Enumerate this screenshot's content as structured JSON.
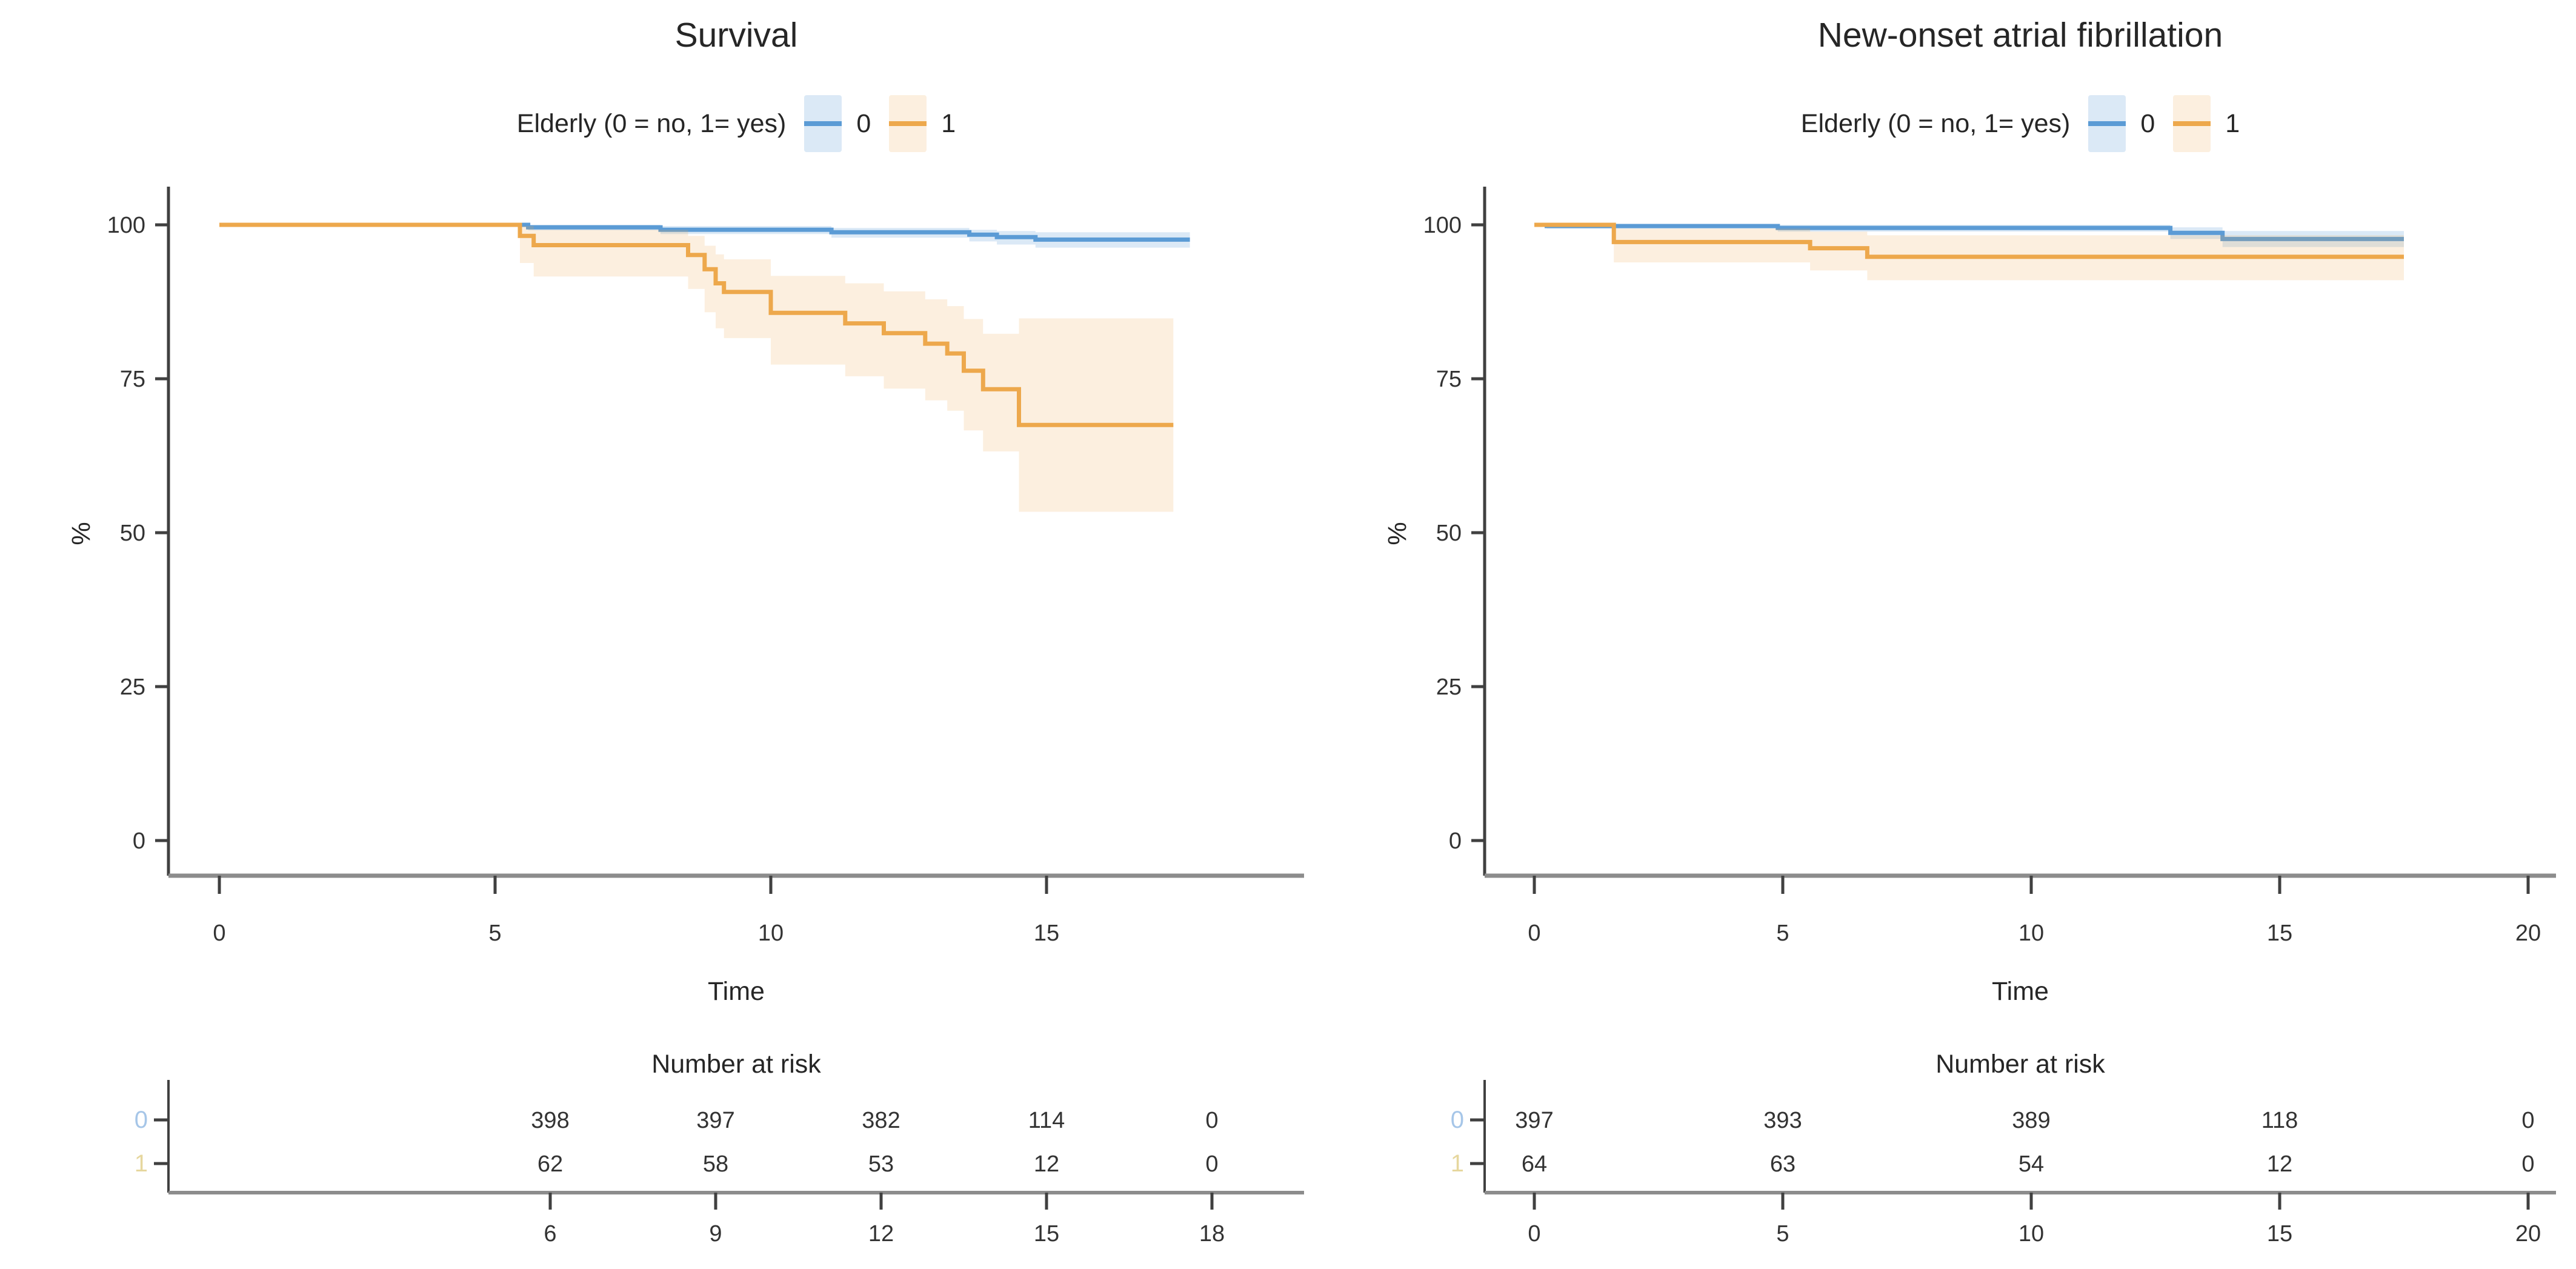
{
  "figure": {
    "background": "#FFFFFF",
    "text_color": "#262626"
  },
  "chart_data": [
    {
      "type": "line",
      "variant": "kaplan-meier-step",
      "title": "Survival",
      "legend_title": "Elderly (0 = no, 1= yes)",
      "legend_position": "top",
      "xlabel": "Time",
      "ylabel": "%",
      "grid": false,
      "ylim": [
        0,
        105
      ],
      "xlim": [
        0,
        19.7
      ],
      "yticks": [
        100,
        75,
        50,
        25,
        0
      ],
      "xticks": [
        0,
        5,
        10,
        15
      ],
      "series": [
        {
          "name": "0",
          "color": "#5B9BD5",
          "band_color": "rgba(91,155,213,0.22)",
          "points": [
            [
              0,
              100
            ],
            [
              5.6,
              99.6
            ],
            [
              8.0,
              99.2
            ],
            [
              11.1,
              98.8
            ],
            [
              13.6,
              98.4
            ],
            [
              14.1,
              98.0
            ],
            [
              14.8,
              97.6
            ],
            [
              17.6,
              97.6
            ]
          ],
          "ci": [
            [
              0,
              100,
              100
            ],
            [
              5.6,
              99.1,
              100
            ],
            [
              8.0,
              98.5,
              99.8
            ],
            [
              11.1,
              97.9,
              99.5
            ],
            [
              13.6,
              97.3,
              99.2
            ],
            [
              14.1,
              96.8,
              99.0
            ],
            [
              14.8,
              96.3,
              98.8
            ],
            [
              17.6,
              96.3,
              98.8
            ]
          ]
        },
        {
          "name": "1",
          "color": "#EDA84C",
          "band_color": "rgba(237,168,76,0.18)",
          "points": [
            [
              0,
              100
            ],
            [
              5.45,
              98.2
            ],
            [
              5.7,
              96.7
            ],
            [
              8.5,
              95.1
            ],
            [
              8.8,
              92.8
            ],
            [
              9.0,
              90.5
            ],
            [
              9.15,
              89.1
            ],
            [
              10.0,
              85.7
            ],
            [
              11.35,
              84.0
            ],
            [
              12.05,
              82.4
            ],
            [
              12.8,
              80.7
            ],
            [
              13.2,
              79.1
            ],
            [
              13.5,
              76.3
            ],
            [
              13.85,
              73.3
            ],
            [
              14.5,
              67.5
            ],
            [
              17.3,
              67.5
            ]
          ],
          "ci": [
            [
              0,
              100,
              100
            ],
            [
              5.45,
              93.8,
              99.8
            ],
            [
              5.7,
              91.6,
              99.2
            ],
            [
              8.5,
              89.6,
              98.2
            ],
            [
              8.8,
              85.8,
              96.6
            ],
            [
              9.0,
              83.2,
              95.2
            ],
            [
              9.15,
              81.6,
              94.4
            ],
            [
              10.0,
              77.3,
              91.7
            ],
            [
              11.35,
              75.4,
              90.5
            ],
            [
              12.05,
              73.4,
              89.2
            ],
            [
              12.8,
              71.5,
              87.9
            ],
            [
              13.2,
              69.8,
              86.8
            ],
            [
              13.5,
              66.6,
              84.7
            ],
            [
              13.85,
              63.2,
              82.3
            ],
            [
              14.5,
              53.4,
              84.8
            ],
            [
              17.3,
              53.4,
              84.8
            ]
          ]
        }
      ],
      "risk_table": {
        "title": "Number at risk",
        "xticks": [
          6,
          9,
          12,
          15,
          18
        ],
        "rows": [
          {
            "label": "0",
            "label_color": "#A6C6E8",
            "values": [
              398,
              397,
              382,
              114,
              0
            ]
          },
          {
            "label": "1",
            "label_color": "#E6D79E",
            "values": [
              62,
              58,
              53,
              12,
              0
            ]
          }
        ]
      }
    },
    {
      "type": "line",
      "variant": "kaplan-meier-step",
      "title": "New-onset atrial fibrillation",
      "legend_title": "Elderly (0 = no, 1= yes)",
      "legend_position": "top",
      "xlabel": "Time",
      "ylabel": "%",
      "grid": false,
      "ylim": [
        0,
        105
      ],
      "xlim": [
        0,
        20.6
      ],
      "yticks": [
        100,
        75,
        50,
        25,
        0
      ],
      "xticks": [
        0,
        5,
        10,
        15,
        20
      ],
      "series": [
        {
          "name": "0",
          "color": "#5B9BD5",
          "band_color": "rgba(91,155,213,0.22)",
          "points": [
            [
              0,
              100
            ],
            [
              0.25,
              99.8
            ],
            [
              4.9,
              99.5
            ],
            [
              12.8,
              98.7
            ],
            [
              13.85,
              97.7
            ],
            [
              17.5,
              97.7
            ]
          ],
          "ci": [
            [
              0,
              100,
              100
            ],
            [
              0.25,
              99.4,
              100
            ],
            [
              4.9,
              98.9,
              100
            ],
            [
              12.8,
              97.7,
              99.6
            ],
            [
              13.85,
              96.4,
              99.0
            ],
            [
              17.5,
              96.4,
              99.0
            ]
          ]
        },
        {
          "name": "1",
          "color": "#EDA84C",
          "band_color": "rgba(237,168,76,0.18)",
          "points": [
            [
              0,
              100
            ],
            [
              1.6,
              97.2
            ],
            [
              5.55,
              96.2
            ],
            [
              6.7,
              94.8
            ],
            [
              17.5,
              94.8
            ]
          ],
          "ci": [
            [
              0,
              100,
              100
            ],
            [
              1.6,
              93.9,
              99.4
            ],
            [
              5.55,
              92.6,
              98.9
            ],
            [
              6.7,
              91.0,
              98.3
            ],
            [
              17.5,
              91.0,
              98.3
            ]
          ]
        }
      ],
      "risk_table": {
        "title": "Number at risk",
        "xticks": [
          0,
          5,
          10,
          15,
          20
        ],
        "rows": [
          {
            "label": "0",
            "label_color": "#A6C6E8",
            "values": [
              397,
              393,
              389,
              118,
              0
            ]
          },
          {
            "label": "1",
            "label_color": "#E6D79E",
            "values": [
              64,
              63,
              54,
              12,
              0
            ]
          }
        ]
      }
    }
  ]
}
